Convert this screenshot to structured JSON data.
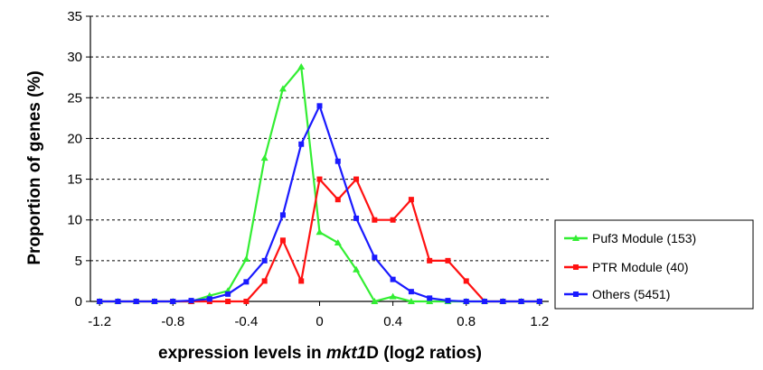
{
  "chart_data": {
    "type": "line",
    "title": "",
    "xlabel": "expression levels in mkt1D (log2 ratios)",
    "xlabel_parts": {
      "pre": "expression levels in ",
      "ital": "mkt1",
      "post": "D (log2 ratios)"
    },
    "ylabel": "Proportion of genes (%)",
    "xlim": [
      -1.25,
      1.25
    ],
    "ylim": [
      0,
      35
    ],
    "x_ticks": [
      "-1.2",
      "-0.8",
      "-0.4",
      "0",
      "0.4",
      "0.8",
      "1.2"
    ],
    "y_ticks": [
      "0",
      "5",
      "10",
      "15",
      "20",
      "25",
      "30",
      "35"
    ],
    "grid": "horizontal dashed",
    "legend_position": "right",
    "x": [
      -1.2,
      -1.1,
      -1.0,
      -0.9,
      -0.8,
      -0.7,
      -0.6,
      -0.5,
      -0.4,
      -0.3,
      -0.2,
      -0.1,
      0.0,
      0.1,
      0.2,
      0.3,
      0.4,
      0.5,
      0.6,
      0.7,
      0.8,
      0.9,
      1.0,
      1.1,
      1.2
    ],
    "series": [
      {
        "name": "Puf3 Module (153)",
        "color": "#33ee33",
        "marker": "triangle",
        "values": [
          0,
          0,
          0,
          0,
          0,
          0,
          0.7,
          1.3,
          5.2,
          17.6,
          26.1,
          28.8,
          8.5,
          7.2,
          3.9,
          0,
          0.6,
          0,
          0,
          0,
          0,
          0,
          0,
          0,
          0
        ]
      },
      {
        "name": "PTR Module (40)",
        "color": "#ff1111",
        "marker": "square",
        "values": [
          0,
          0,
          0,
          0,
          0,
          0,
          0,
          0,
          0,
          2.5,
          7.5,
          2.5,
          15,
          12.5,
          15,
          10,
          10,
          12.5,
          5,
          5,
          2.5,
          0,
          0,
          0,
          0
        ]
      },
      {
        "name": "Others (5451)",
        "color": "#1a1aff",
        "marker": "square",
        "values": [
          0,
          0,
          0,
          0,
          0,
          0.1,
          0.3,
          0.9,
          2.4,
          5,
          10.6,
          19.3,
          24,
          17.2,
          10.2,
          5.4,
          2.7,
          1.2,
          0.4,
          0.1,
          0,
          0,
          0,
          0,
          0
        ]
      }
    ]
  }
}
